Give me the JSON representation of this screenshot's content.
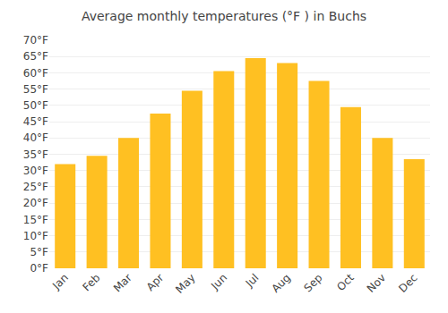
{
  "chart_data": {
    "type": "bar",
    "title": "Average monthly temperatures (°F ) in Buchs",
    "categories": [
      "Jan",
      "Feb",
      "Mar",
      "Apr",
      "May",
      "Jun",
      "Jul",
      "Aug",
      "Sep",
      "Oct",
      "Nov",
      "Dec"
    ],
    "values": [
      32,
      34.5,
      40,
      47.5,
      54.5,
      60.5,
      64.5,
      63,
      57.5,
      49.5,
      40,
      33.5
    ],
    "color": "#FFC022",
    "ylim": [
      0,
      70
    ],
    "yticks": [
      {
        "value": 0,
        "label": "0°F"
      },
      {
        "value": 5,
        "label": "5°F"
      },
      {
        "value": 10,
        "label": "10°F"
      },
      {
        "value": 15,
        "label": "15°F"
      },
      {
        "value": 20,
        "label": "20°F"
      },
      {
        "value": 25,
        "label": "25°F"
      },
      {
        "value": 30,
        "label": "30°F"
      },
      {
        "value": 35,
        "label": "35°F"
      },
      {
        "value": 40,
        "label": "40°F"
      },
      {
        "value": 45,
        "label": "45°F"
      },
      {
        "value": 50,
        "label": "50°F"
      },
      {
        "value": 55,
        "label": "55°F"
      },
      {
        "value": 60,
        "label": "60°F"
      },
      {
        "value": 65,
        "label": "65°F"
      },
      {
        "value": 70,
        "label": "70°F"
      }
    ],
    "grid": true
  }
}
